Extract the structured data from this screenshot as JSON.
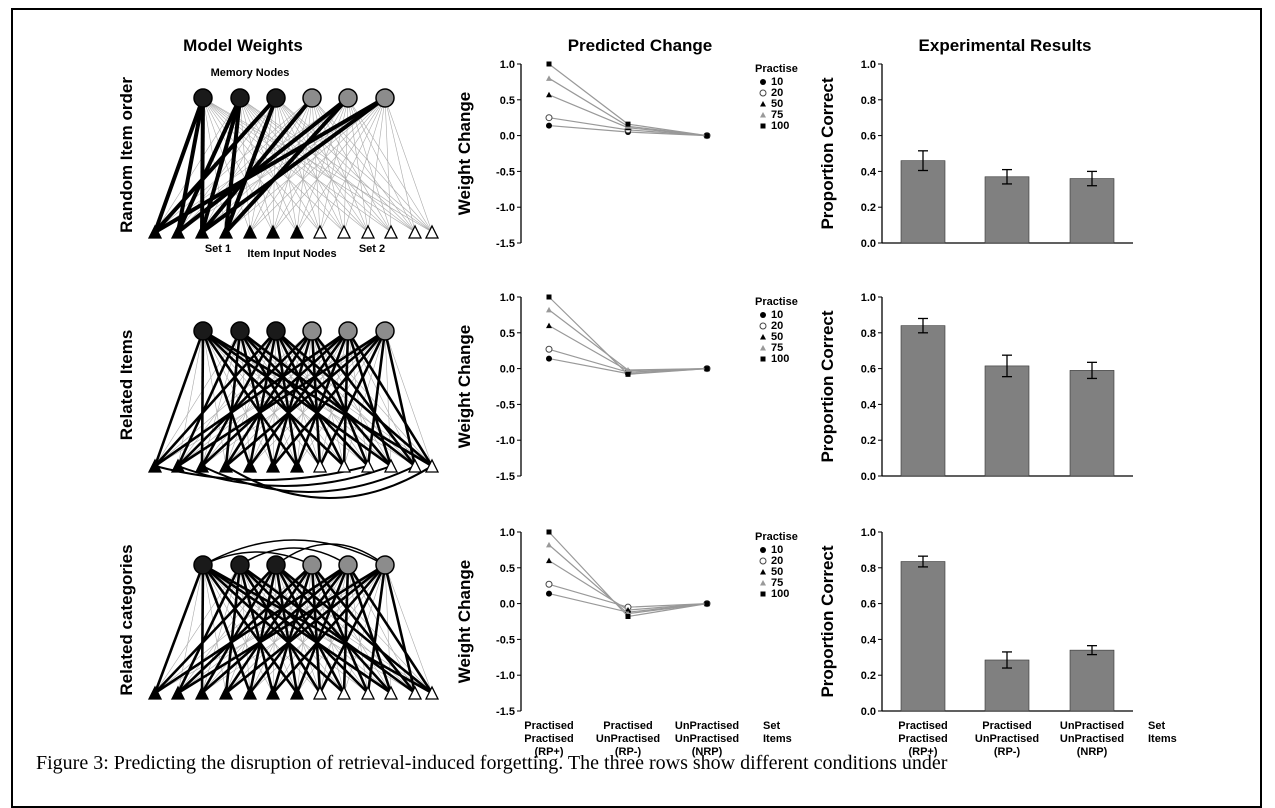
{
  "headers": {
    "col1": "Model Weights",
    "col2": "Predicted Change",
    "col3": "Experimental Results"
  },
  "row_labels": [
    "Random Item order",
    "Related Items",
    "Related categories"
  ],
  "network": {
    "memory_label": "Memory Nodes",
    "input_label": "Item Input Nodes",
    "set1_label": "Set 1",
    "set2_label": "Set 2"
  },
  "caption": "Figure 3: Predicting the disruption of retrieval-induced forgetting. The three rows show different conditions under",
  "colors": {
    "bar_fill": "#808080",
    "dark_node": "#1a1a1a",
    "grey_node": "#8c8c8c",
    "line_grey": "#999999"
  },
  "chart_data": [
    {
      "type": "line",
      "title": "Predicted Change",
      "ylabel": "Weight Change",
      "ylim": [
        -1.5,
        1.0
      ],
      "yticks": [
        "1.0",
        "0.5",
        "0.0",
        "-0.5",
        "-1.0",
        "-1.5"
      ],
      "legend_title": "Practise",
      "legend_position": "top-right",
      "categories": [
        "RP+",
        "RP-",
        "NRP"
      ],
      "series": [
        {
          "name": "10",
          "marker": "filled-circle",
          "values": [
            0.14,
            0.05,
            0.0
          ]
        },
        {
          "name": "20",
          "marker": "open-circle",
          "values": [
            0.25,
            0.08,
            0.0
          ]
        },
        {
          "name": "50",
          "marker": "filled-triangle",
          "values": [
            0.57,
            0.11,
            0.0
          ]
        },
        {
          "name": "75",
          "marker": "grey-triangle",
          "values": [
            0.8,
            0.13,
            0.0
          ]
        },
        {
          "name": "100",
          "marker": "filled-square",
          "values": [
            1.0,
            0.16,
            0.0
          ]
        }
      ]
    },
    {
      "type": "bar",
      "title": "Experimental Results",
      "ylabel": "Proportion Correct",
      "ylim": [
        0.0,
        1.0
      ],
      "yticks": [
        "1.0",
        "0.8",
        "0.6",
        "0.4",
        "0.2",
        "0.0"
      ],
      "categories": [
        "RP+",
        "RP-",
        "NRP"
      ],
      "values": [
        0.46,
        0.37,
        0.36
      ],
      "errors": [
        0.055,
        0.04,
        0.04
      ]
    },
    {
      "type": "line",
      "ylabel": "Weight Change",
      "ylim": [
        -1.5,
        1.0
      ],
      "yticks": [
        "1.0",
        "0.5",
        "0.0",
        "-0.5",
        "-1.0",
        "-1.5"
      ],
      "legend_title": "Practise",
      "legend_position": "top-right",
      "categories": [
        "RP+",
        "RP-",
        "NRP"
      ],
      "series": [
        {
          "name": "10",
          "marker": "filled-circle",
          "values": [
            0.14,
            -0.07,
            0.0
          ]
        },
        {
          "name": "20",
          "marker": "open-circle",
          "values": [
            0.27,
            -0.05,
            0.0
          ]
        },
        {
          "name": "50",
          "marker": "filled-triangle",
          "values": [
            0.6,
            -0.03,
            0.0
          ]
        },
        {
          "name": "75",
          "marker": "grey-triangle",
          "values": [
            0.82,
            -0.02,
            0.0
          ]
        },
        {
          "name": "100",
          "marker": "filled-square",
          "values": [
            1.0,
            -0.08,
            0.0
          ]
        }
      ]
    },
    {
      "type": "bar",
      "ylabel": "Proportion Correct",
      "ylim": [
        0.0,
        1.0
      ],
      "yticks": [
        "1.0",
        "0.8",
        "0.6",
        "0.4",
        "0.2",
        "0.0"
      ],
      "categories": [
        "RP+",
        "RP-",
        "NRP"
      ],
      "values": [
        0.84,
        0.615,
        0.59
      ],
      "errors": [
        0.04,
        0.06,
        0.045
      ]
    },
    {
      "type": "line",
      "ylabel": "Weight Change",
      "ylim": [
        -1.5,
        1.0
      ],
      "yticks": [
        "1.0",
        "0.5",
        "0.0",
        "-0.5",
        "-1.0",
        "-1.5"
      ],
      "legend_title": "Practise",
      "legend_position": "top-right",
      "categories": [
        "RP+",
        "RP-",
        "NRP"
      ],
      "series": [
        {
          "name": "10",
          "marker": "filled-circle",
          "values": [
            0.14,
            -0.12,
            0.0
          ]
        },
        {
          "name": "20",
          "marker": "open-circle",
          "values": [
            0.27,
            -0.05,
            0.0
          ]
        },
        {
          "name": "50",
          "marker": "filled-triangle",
          "values": [
            0.6,
            -0.09,
            0.0
          ]
        },
        {
          "name": "75",
          "marker": "grey-triangle",
          "values": [
            0.82,
            -0.14,
            0.0
          ]
        },
        {
          "name": "100",
          "marker": "filled-square",
          "values": [
            1.0,
            -0.18,
            0.0
          ]
        }
      ],
      "x_tick_labels": [
        [
          "Practised",
          "Practised",
          "(RP+)"
        ],
        [
          "Practised",
          "UnPractised",
          "(RP-)"
        ],
        [
          "UnPractised",
          "UnPractised",
          "(NRP)"
        ]
      ],
      "x_side_label": [
        "Set",
        "Items"
      ]
    },
    {
      "type": "bar",
      "ylabel": "Proportion Correct",
      "ylim": [
        0.0,
        1.0
      ],
      "yticks": [
        "1.0",
        "0.8",
        "0.6",
        "0.4",
        "0.2",
        "0.0"
      ],
      "categories": [
        "RP+",
        "RP-",
        "NRP"
      ],
      "values": [
        0.835,
        0.285,
        0.34
      ],
      "errors": [
        0.03,
        0.045,
        0.025
      ],
      "x_tick_labels": [
        [
          "Practised",
          "Practised",
          "(RP+)"
        ],
        [
          "Practised",
          "UnPractised",
          "(RP-)"
        ],
        [
          "UnPractised",
          "UnPractised",
          "(NRP)"
        ]
      ],
      "x_side_label": [
        "Set",
        "Items"
      ]
    }
  ]
}
